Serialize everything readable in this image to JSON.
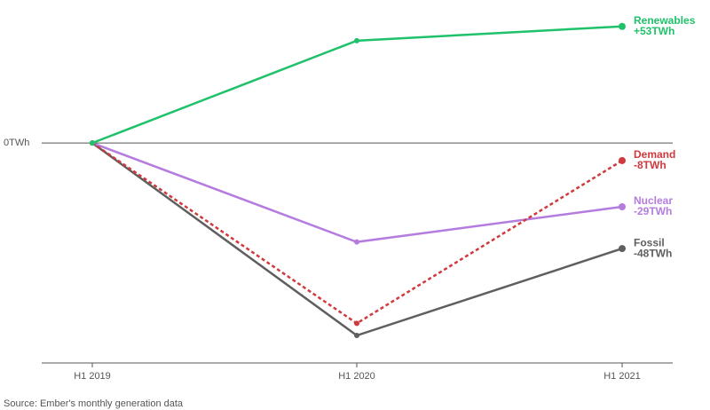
{
  "chart_data": {
    "type": "line",
    "categories": [
      "H1 2019",
      "H1 2020",
      "H1 2021"
    ],
    "series": [
      {
        "name": "Fossil",
        "color": "#5f5f5f",
        "values": [
          0,
          -87.5,
          -48
        ],
        "value_labels": [
          null,
          null,
          "-48TWh"
        ]
      },
      {
        "name": "Nuclear",
        "color": "#b57ce0",
        "values": [
          0,
          -45,
          -29
        ],
        "value_labels": [
          null,
          null,
          "-29TWh"
        ]
      },
      {
        "name": "Demand",
        "color": "#d0393d",
        "dashed": true,
        "values": [
          0,
          -82,
          -8
        ],
        "value_labels": [
          null,
          null,
          "-8TWh"
        ]
      },
      {
        "name": "Renewables",
        "color": "#1fc26a",
        "values": [
          0,
          46.5,
          53
        ],
        "value_labels": [
          null,
          null,
          "+53TWh"
        ]
      }
    ],
    "ylim": [
      -100,
      65
    ],
    "yticks": [
      {
        "value": 0,
        "label": "0TWh"
      }
    ],
    "source": "Source: Ember's monthly generation data"
  }
}
